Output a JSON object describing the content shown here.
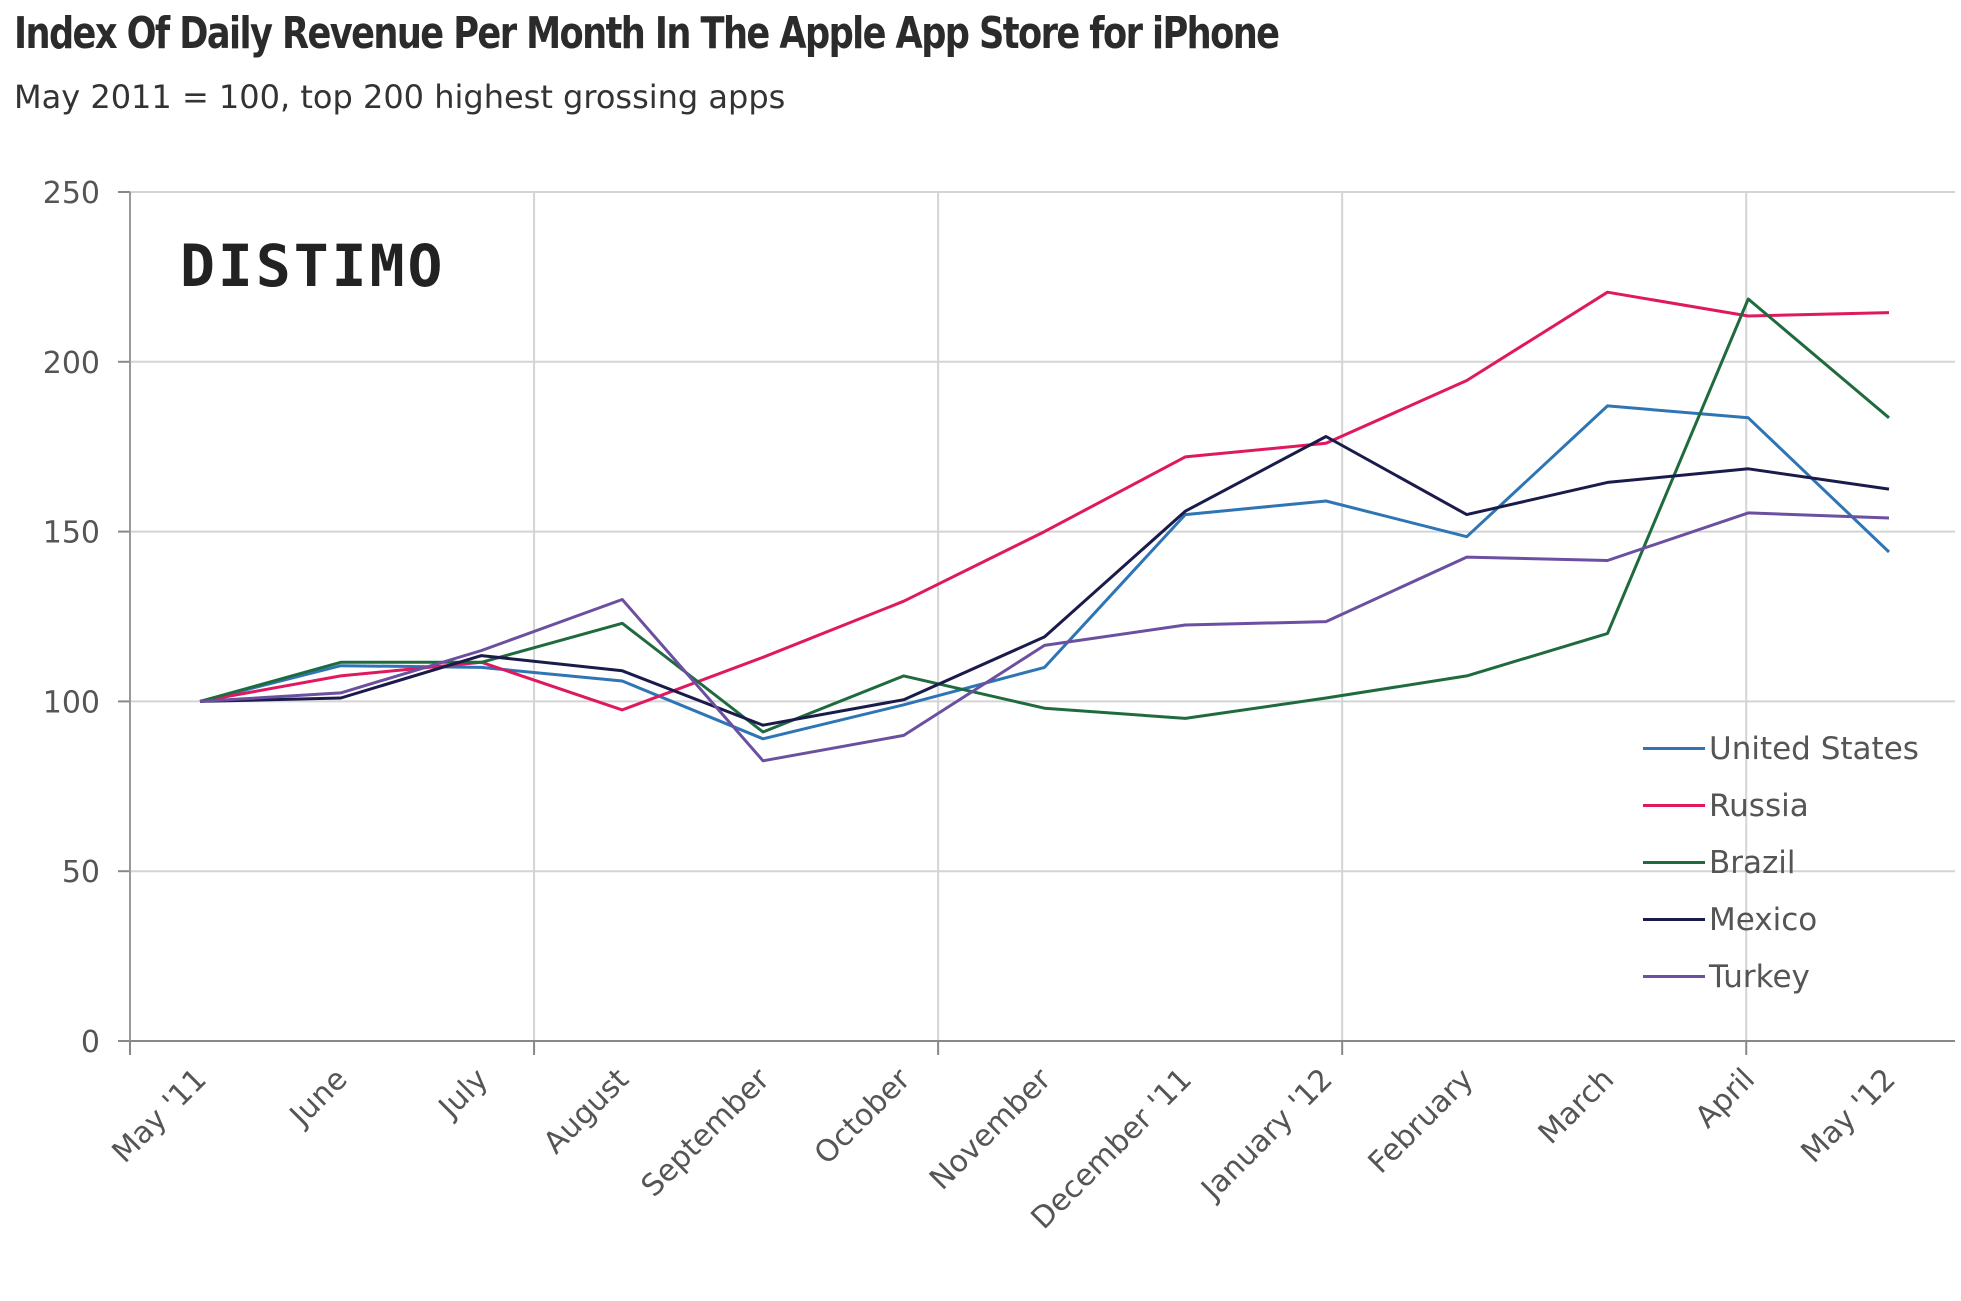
{
  "chart_data": {
    "type": "line",
    "title": "Index Of Daily Revenue Per Month In The Apple App Store for iPhone",
    "subtitle": "May 2011 = 100, top 200 highest grossing apps",
    "watermark": "DISTIMO",
    "xlabel": "",
    "ylabel": "",
    "categories": [
      "May '11",
      "June",
      "July",
      "August",
      "September",
      "October",
      "November",
      "December '11",
      "January '12",
      "February",
      "March",
      "April",
      "May '12"
    ],
    "yticks": [
      0,
      50,
      100,
      150,
      200,
      250
    ],
    "ylim": [
      0,
      250
    ],
    "grid": true,
    "legend_position": "bottom-right",
    "series": [
      {
        "name": "United States",
        "color": "#2e75b6",
        "values": [
          100,
          110.5,
          110,
          106,
          89,
          99,
          110,
          155,
          159,
          148.5,
          187,
          183.5,
          144
        ]
      },
      {
        "name": "Russia",
        "color": "#e0195f",
        "values": [
          100,
          107.5,
          111.5,
          97.5,
          113,
          129.5,
          150,
          172,
          176,
          194.5,
          220.5,
          213.5,
          214.5
        ]
      },
      {
        "name": "Brazil",
        "color": "#1f6b3e",
        "values": [
          100,
          111.5,
          111.5,
          123,
          91,
          107.5,
          98,
          95,
          101,
          107.5,
          120,
          218.5,
          183.5
        ]
      },
      {
        "name": "Mexico",
        "color": "#1b1b4b",
        "values": [
          100,
          101,
          113.5,
          109,
          93,
          100.5,
          119,
          156,
          178,
          155,
          164.5,
          168.5,
          162.5
        ]
      },
      {
        "name": "Turkey",
        "color": "#6b4fa0",
        "values": [
          100,
          102.5,
          115,
          130,
          82.5,
          90,
          116.5,
          122.5,
          123.5,
          142.5,
          141.5,
          155.5,
          154
        ]
      }
    ]
  }
}
